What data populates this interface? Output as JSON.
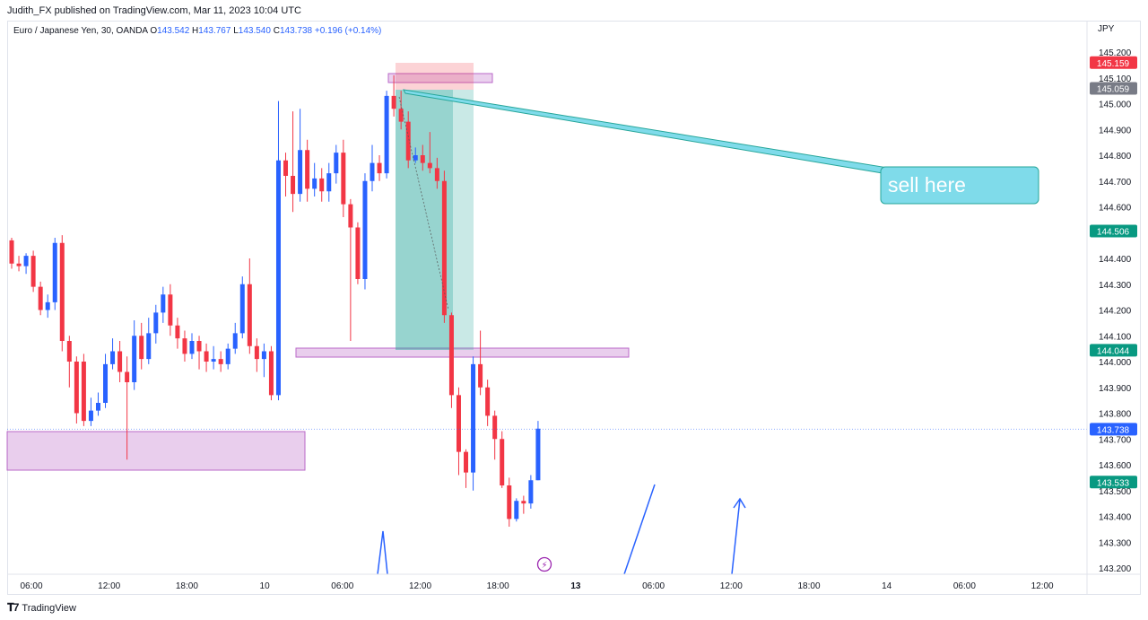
{
  "header": {
    "publisher": "Judith_FX published on TradingView.com, Mar 11, 2023 10:04 UTC"
  },
  "symbol": {
    "name": "Euro / Japanese Yen, 30, OANDA",
    "o_label": "O",
    "open": "143.542",
    "h_label": "H",
    "high": "143.767",
    "l_label": "L",
    "low": "143.540",
    "c_label": "C",
    "close": "143.738",
    "change": "+0.196 (+0.14%)"
  },
  "axis": {
    "currency": "JPY",
    "price_ticks": [
      "145.200",
      "145.100",
      "145.000",
      "144.900",
      "144.800",
      "144.700",
      "144.600",
      "144.500",
      "144.400",
      "144.300",
      "144.200",
      "144.100",
      "144.000",
      "143.900",
      "143.800",
      "143.700",
      "143.600",
      "143.500",
      "143.400",
      "143.300",
      "143.200"
    ],
    "time_ticks": [
      "06:00",
      "12:00",
      "18:00",
      "10",
      "06:00",
      "12:00",
      "18:00",
      "13",
      "06:00",
      "12:00",
      "18:00",
      "14",
      "06:00",
      "12:00"
    ],
    "bold_time_ticks": [
      "13"
    ]
  },
  "price_labels": [
    {
      "value": "145.159",
      "price": 145.159,
      "color": "#f23645"
    },
    {
      "value": "145.059",
      "price": 145.059,
      "color": "#787b86"
    },
    {
      "value": "144.506",
      "price": 144.506,
      "color": "#089981"
    },
    {
      "value": "144.044",
      "price": 144.044,
      "color": "#089981"
    },
    {
      "value": "143.738",
      "price": 143.738,
      "color": "#2962ff"
    },
    {
      "value": "143.533",
      "price": 143.533,
      "color": "#089981"
    }
  ],
  "annotation": {
    "text": "sell here"
  },
  "colors": {
    "up": "#2962ff",
    "down": "#f23645",
    "zone": "#e1bee7",
    "teal": "#26a69a",
    "callout": "#7fdbea"
  },
  "footer": {
    "brand": "TradingView"
  },
  "candles": [
    [
      144.47,
      144.38,
      144.48,
      144.36
    ],
    [
      144.38,
      144.37,
      144.41,
      144.35
    ],
    [
      144.37,
      144.41,
      144.42,
      144.34
    ],
    [
      144.41,
      144.29,
      144.43,
      144.27
    ],
    [
      144.29,
      144.2,
      144.31,
      144.18
    ],
    [
      144.2,
      144.23,
      144.26,
      144.17
    ],
    [
      144.23,
      144.46,
      144.48,
      144.2
    ],
    [
      144.46,
      144.08,
      144.49,
      144.04
    ],
    [
      144.08,
      144.0,
      144.1,
      143.9
    ],
    [
      144.0,
      143.8,
      144.02,
      143.76
    ],
    [
      144.0,
      143.77,
      144.03,
      143.75
    ],
    [
      143.77,
      143.81,
      143.86,
      143.75
    ],
    [
      143.81,
      143.84,
      143.88,
      143.79
    ],
    [
      143.84,
      143.99,
      144.03,
      143.82
    ],
    [
      143.99,
      144.04,
      144.09,
      143.97
    ],
    [
      144.04,
      143.96,
      144.08,
      143.92
    ],
    [
      143.96,
      143.92,
      144.02,
      143.62
    ],
    [
      143.92,
      144.1,
      144.16,
      143.89
    ],
    [
      144.1,
      144.01,
      144.15,
      143.97
    ],
    [
      144.01,
      144.11,
      144.17,
      143.99
    ],
    [
      144.11,
      144.19,
      144.22,
      144.07
    ],
    [
      144.19,
      144.26,
      144.29,
      144.15
    ],
    [
      144.26,
      144.14,
      144.3,
      144.1
    ],
    [
      144.14,
      144.09,
      144.17,
      144.05
    ],
    [
      144.09,
      144.03,
      144.12,
      144.0
    ],
    [
      144.03,
      144.08,
      144.11,
      144.01
    ],
    [
      144.08,
      144.04,
      144.1,
      143.97
    ],
    [
      144.04,
      144.0,
      144.07,
      143.96
    ],
    [
      144.0,
      144.01,
      144.06,
      143.97
    ],
    [
      144.01,
      143.99,
      144.04,
      143.96
    ],
    [
      143.99,
      144.05,
      144.07,
      143.97
    ],
    [
      144.05,
      144.11,
      144.15,
      144.03
    ],
    [
      144.11,
      144.3,
      144.33,
      144.09
    ],
    [
      144.3,
      144.06,
      144.4,
      144.03
    ],
    [
      144.06,
      144.01,
      144.09,
      143.96
    ],
    [
      144.01,
      144.04,
      144.07,
      143.94
    ],
    [
      144.04,
      143.87,
      144.06,
      143.85
    ],
    [
      143.87,
      144.78,
      145.01,
      143.85
    ],
    [
      144.78,
      144.72,
      144.81,
      144.64
    ],
    [
      144.72,
      144.65,
      144.97,
      144.58
    ],
    [
      144.65,
      144.82,
      144.98,
      144.62
    ],
    [
      144.82,
      144.67,
      144.86,
      144.62
    ],
    [
      144.67,
      144.71,
      144.77,
      144.64
    ],
    [
      144.71,
      144.66,
      144.75,
      144.62
    ],
    [
      144.66,
      144.73,
      144.77,
      144.62
    ],
    [
      144.73,
      144.81,
      144.84,
      144.69
    ],
    [
      144.81,
      144.61,
      144.86,
      144.56
    ],
    [
      144.61,
      144.52,
      144.63,
      144.08
    ],
    [
      144.52,
      144.32,
      144.54,
      144.3
    ],
    [
      144.32,
      144.7,
      144.73,
      144.28
    ],
    [
      144.7,
      144.77,
      144.84,
      144.66
    ],
    [
      144.77,
      144.73,
      144.8,
      144.7
    ],
    [
      144.73,
      145.03,
      145.05,
      144.71
    ],
    [
      145.03,
      144.98,
      145.11,
      144.95
    ],
    [
      144.98,
      144.93,
      145.05,
      144.9
    ],
    [
      144.93,
      144.78,
      144.97,
      144.75
    ],
    [
      144.78,
      144.8,
      144.83,
      144.77
    ],
    [
      144.8,
      144.77,
      144.84,
      144.74
    ],
    [
      144.77,
      144.75,
      144.89,
      144.73
    ],
    [
      144.75,
      144.7,
      144.79,
      144.67
    ],
    [
      144.7,
      144.18,
      144.74,
      144.15
    ],
    [
      144.18,
      143.87,
      144.19,
      143.82
    ],
    [
      143.87,
      143.65,
      143.9,
      143.56
    ],
    [
      143.65,
      143.57,
      143.66,
      143.51
    ],
    [
      143.57,
      143.99,
      144.02,
      143.5
    ],
    [
      143.99,
      143.9,
      144.12,
      143.87
    ],
    [
      143.9,
      143.79,
      143.93,
      143.75
    ],
    [
      143.79,
      143.7,
      143.81,
      143.62
    ],
    [
      143.7,
      143.52,
      143.73,
      143.51
    ],
    [
      143.52,
      143.39,
      143.55,
      143.36
    ],
    [
      143.39,
      143.46,
      143.47,
      143.38
    ],
    [
      143.46,
      143.45,
      143.48,
      143.41
    ],
    [
      143.45,
      143.54,
      143.56,
      143.43
    ],
    [
      143.54,
      143.74,
      143.77,
      143.54
    ]
  ]
}
